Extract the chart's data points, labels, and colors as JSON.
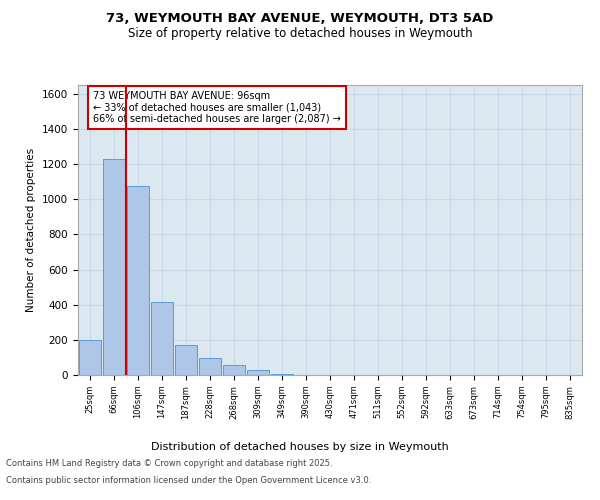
{
  "title_line1": "73, WEYMOUTH BAY AVENUE, WEYMOUTH, DT3 5AD",
  "title_line2": "Size of property relative to detached houses in Weymouth",
  "xlabel": "Distribution of detached houses by size in Weymouth",
  "ylabel": "Number of detached properties",
  "categories": [
    "25sqm",
    "66sqm",
    "106sqm",
    "147sqm",
    "187sqm",
    "228sqm",
    "268sqm",
    "309sqm",
    "349sqm",
    "390sqm",
    "430sqm",
    "471sqm",
    "511sqm",
    "552sqm",
    "592sqm",
    "633sqm",
    "673sqm",
    "714sqm",
    "754sqm",
    "795sqm",
    "835sqm"
  ],
  "values": [
    200,
    1230,
    1075,
    415,
    170,
    95,
    55,
    30,
    5,
    0,
    0,
    0,
    0,
    0,
    0,
    0,
    0,
    0,
    0,
    0,
    0
  ],
  "bar_color": "#aec6e8",
  "bar_edge_color": "#5b9bd5",
  "vline_x": 1.5,
  "vline_color": "#cc0000",
  "annotation_text": "73 WEYMOUTH BAY AVENUE: 96sqm\n← 33% of detached houses are smaller (1,043)\n66% of semi-detached houses are larger (2,087) →",
  "annotation_box_color": "#ffffff",
  "annotation_border_color": "#cc0000",
  "ylim": [
    0,
    1650
  ],
  "yticks": [
    0,
    200,
    400,
    600,
    800,
    1000,
    1200,
    1400,
    1600
  ],
  "grid_color": "#c8d8e8",
  "background_color": "#dce8f0",
  "fig_background": "#ffffff",
  "footer_line1": "Contains HM Land Registry data © Crown copyright and database right 2025.",
  "footer_line2": "Contains public sector information licensed under the Open Government Licence v3.0."
}
